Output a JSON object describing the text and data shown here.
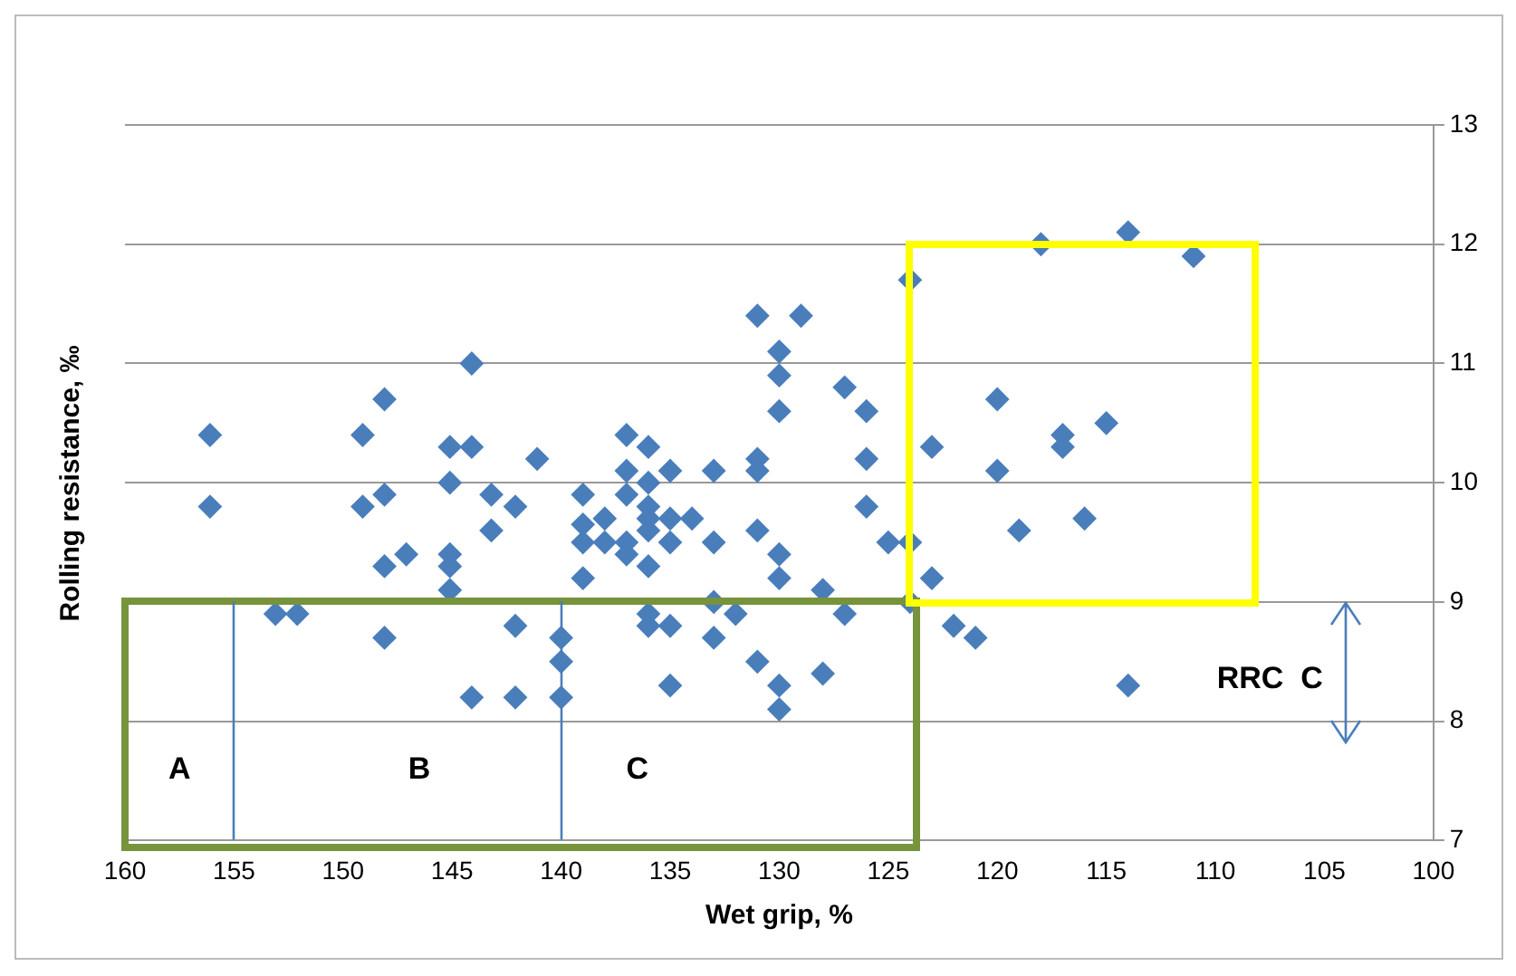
{
  "chart_data": {
    "type": "scatter",
    "xlabel": "Wet grip, %",
    "ylabel": "Rolling resistance, ‰",
    "xlim": [
      160,
      100
    ],
    "xticks": [
      160,
      155,
      150,
      145,
      140,
      135,
      130,
      125,
      120,
      115,
      110,
      105,
      100
    ],
    "ylim": [
      7,
      13
    ],
    "yticks": [
      7,
      8,
      9,
      10,
      11,
      12,
      13
    ],
    "grid": "y",
    "legend": false,
    "marker": "diamond",
    "annotations": [
      "A",
      "B",
      "C",
      "RRC  C"
    ],
    "series": [
      {
        "color": "#4a7ebb",
        "x": [
          156.1,
          156.1,
          153.1,
          152.1,
          149.1,
          149.1,
          148.1,
          148.1,
          148.1,
          147.1,
          148.1,
          144.1,
          145.1,
          144.1,
          145.1,
          145.1,
          145.1,
          145.1,
          143.2,
          143.2,
          142.1,
          141.1,
          142.1,
          144.1,
          142.1,
          140,
          140,
          140,
          139,
          139,
          139,
          139,
          138,
          138,
          137,
          137,
          137,
          137,
          137,
          136,
          136,
          136,
          136,
          136,
          136,
          135,
          135,
          135,
          134,
          133,
          133,
          136,
          136,
          135,
          135,
          133,
          132,
          133,
          131,
          129,
          130,
          130,
          130,
          131,
          131,
          131,
          130,
          130,
          131,
          130,
          130,
          128,
          128,
          127,
          126,
          126,
          126,
          127,
          125,
          124,
          124,
          124,
          123,
          123,
          122,
          121,
          120,
          120,
          119,
          118,
          117,
          117,
          116,
          115,
          114,
          114,
          111
        ],
        "values": [
          10.4,
          9.8,
          8.9,
          8.9,
          10.4,
          9.8,
          10.7,
          9.9,
          9.3,
          9.4,
          8.7,
          11.0,
          10.3,
          10.3,
          10.0,
          9.4,
          9.3,
          9.1,
          9.9,
          9.6,
          9.8,
          10.2,
          8.8,
          8.2,
          8.2,
          8.2,
          8.5,
          8.7,
          9.9,
          9.65,
          9.5,
          9.2,
          9.7,
          9.5,
          10.4,
          10.1,
          9.9,
          9.5,
          9.4,
          10.3,
          10.0,
          9.8,
          9.7,
          9.6,
          9.3,
          10.1,
          9.7,
          9.5,
          9.7,
          10.1,
          9.5,
          8.9,
          8.8,
          8.8,
          8.3,
          9.0,
          8.9,
          8.7,
          11.4,
          11.4,
          11.1,
          10.9,
          10.6,
          10.2,
          10.1,
          9.6,
          9.4,
          9.2,
          8.5,
          8.3,
          8.1,
          9.1,
          8.4,
          10.8,
          10.6,
          10.2,
          9.8,
          8.9,
          9.5,
          9.5,
          11.7,
          9.0,
          10.3,
          9.2,
          8.8,
          8.7,
          10.7,
          10.1,
          9.6,
          12.0,
          10.4,
          10.3,
          9.7,
          10.5,
          12.1,
          8.3,
          11.9
        ]
      }
    ]
  }
}
